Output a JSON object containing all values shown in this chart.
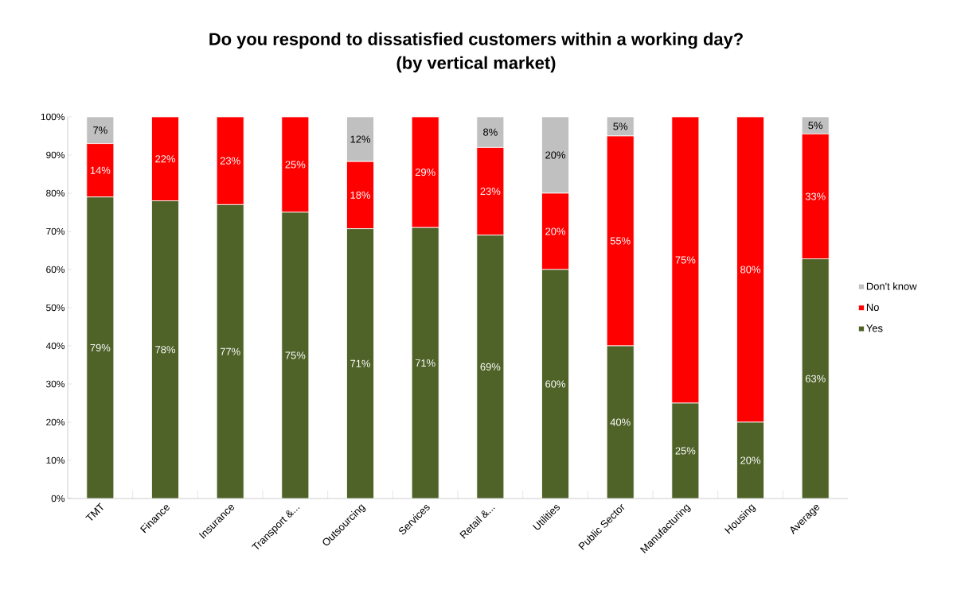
{
  "chart_data": {
    "type": "bar",
    "stacked": true,
    "title": "Do you respond to dissatisfied customers within a working day?\n(by vertical market)",
    "categories": [
      "TMT",
      "Finance",
      "Insurance",
      "Transport &...",
      "Outsourcing",
      "Services",
      "Retail &...",
      "Utilities",
      "Public Sector",
      "Manufacturing",
      "Housing",
      "Average"
    ],
    "series": [
      {
        "name": "Yes",
        "color": "#4f6228",
        "values": [
          79,
          78,
          77,
          75,
          70.7,
          71,
          69,
          60,
          40,
          25,
          20,
          62.8
        ],
        "value_labels": [
          "79%",
          "78%",
          "77%",
          "75%",
          "71%",
          "71%",
          "69%",
          "60%",
          "40%",
          "25%",
          "20%",
          "63%"
        ]
      },
      {
        "name": "No",
        "color": "#ff0000",
        "values": [
          14,
          22,
          23,
          25,
          17.6,
          29,
          23,
          20,
          55,
          75,
          80,
          32.7
        ],
        "value_labels": [
          "14%",
          "22%",
          "23%",
          "25%",
          "18%",
          "29%",
          "23%",
          "20%",
          "55%",
          "75%",
          "80%",
          "33%"
        ]
      },
      {
        "name": "Don't know",
        "color": "#c0c0c0",
        "values": [
          7,
          0,
          0,
          0,
          11.7,
          0,
          8,
          20,
          5,
          0,
          0,
          4.5
        ],
        "value_labels": [
          "7%",
          null,
          null,
          null,
          "12%",
          null,
          "8%",
          "20%",
          "5%",
          null,
          null,
          "5%"
        ]
      }
    ],
    "ylim": [
      0,
      100
    ],
    "yticks": [
      {
        "value": 0,
        "label": "0%"
      },
      {
        "value": 10,
        "label": "10%"
      },
      {
        "value": 20,
        "label": "20%"
      },
      {
        "value": 30,
        "label": "30%"
      },
      {
        "value": 40,
        "label": "40%"
      },
      {
        "value": 50,
        "label": "50%"
      },
      {
        "value": 60,
        "label": "60%"
      },
      {
        "value": 70,
        "label": "70%"
      },
      {
        "value": 80,
        "label": "80%"
      },
      {
        "value": 90,
        "label": "90%"
      },
      {
        "value": 100,
        "label": "100%"
      }
    ],
    "legend": "right"
  }
}
